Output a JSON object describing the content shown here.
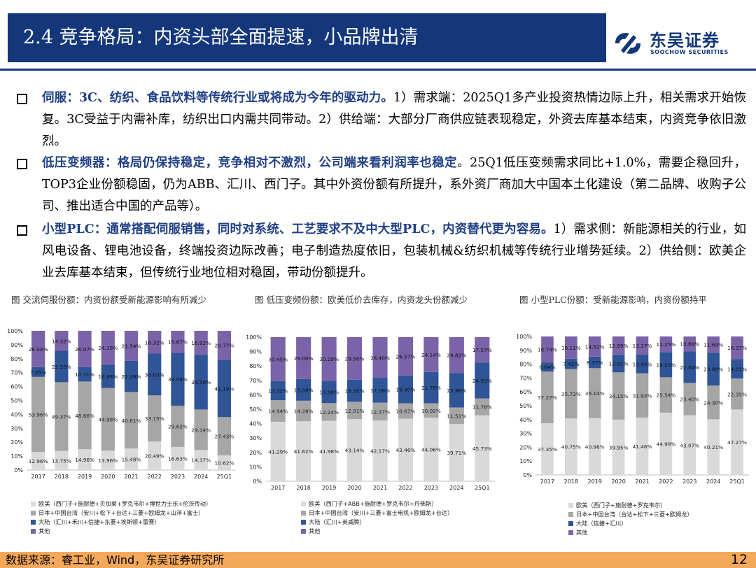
{
  "header": {
    "title": "2.4 竞争格局：内资头部全面提速，小品牌出清",
    "logo_cn": "东吴证券",
    "logo_en": "SOOCHOW SECURITIES"
  },
  "bullets": [
    {
      "lead": "伺服：3C、纺织、食品饮料等传统行业或将成为今年的驱动力。",
      "rest": "1）需求端：2025Q1多产业投资热情边际上升，相关需求开始恢复。3C受益于内需补库，纺织出口内需共同带动。2）供给端：大部分厂商供应链表现稳定，外资去库基本结束，内资竞争依旧激烈。"
    },
    {
      "lead": "低压变频器：格局仍保持稳定，竞争相对不激烈，公司端来看利润率也稳定",
      "rest": "。25Q1低压变频需求同比+1.0%，需要企稳回升，TOP3企业份额稳固，仍为ABB、汇川、西门子。其中外资份额有所提升，系外资厂商加大中国本土化建设（第二品牌、收购子公司、推出适合中国的产品等）。"
    },
    {
      "lead": "小型PLC：通常搭配伺服销售，同时对系统、工艺要求不及中大型PLC，内资替代更为容易。",
      "rest": "1）需求侧：新能源相关的行业，如风电设备、锂电池设备，终端投资边际改善；电子制造热度依旧，包装机械&纺织机械等传统行业增势延续。2）供给侧：欧美企业去库基本结束，但传统行业地位相对稳固，带动份额提升。"
    }
  ],
  "captions": [
    "图 交流伺服份额：内资份额受新能源影响有所减少",
    "图 低压变频份额：欧美低价去库存，内资龙头份额减少",
    "图 小型PLC份额：受新能源影响，内资份额持平"
  ],
  "chart_data": [
    {
      "type": "bar",
      "stacked": true,
      "categories": [
        "2017",
        "2018",
        "2019",
        "2020",
        "2021",
        "2022",
        "2023",
        "2024",
        "25Q1"
      ],
      "ylim": [
        0,
        100
      ],
      "yticks": [
        "0%",
        "10%",
        "20%",
        "30%",
        "40%",
        "50%",
        "60%",
        "70%",
        "80%",
        "90%",
        "100%"
      ],
      "series": [
        {
          "name": "欧美（西门子+施耐德+贝加莱+罗克韦尔+博世力士乐+伦茨传动）",
          "color": "#d9d9d9",
          "values": [
            12.96,
            13.75,
            14.96,
            13.96,
            15.48,
            20.49,
            16.63,
            14.37,
            10.62
          ]
        },
        {
          "name": "日本+中国台湾（安川+松下+台达+三菱+欧姆龙+山洋+富士）",
          "color": "#a6a6a6",
          "values": [
            53.96,
            49.37,
            48.66,
            44.98,
            40.61,
            33.15,
            29.62,
            29.14,
            27.43
          ]
        },
        {
          "name": "大陆（汇川+禾川+信捷+东菱+埃斯顿+雷赛）",
          "color": "#2f5597",
          "values": [
            7.05,
            22.55,
            10.31,
            16.88,
            22.36,
            30.03,
            38.08,
            39.56,
            41.19
          ]
        },
        {
          "name": "其他",
          "color": "#7a63a8",
          "values": [
            26.04,
            14.32,
            26.07,
            24.18,
            21.54,
            16.32,
            15.67,
            16.92,
            20.77
          ]
        }
      ]
    },
    {
      "type": "bar",
      "stacked": true,
      "categories": [
        "2017",
        "2018",
        "2019",
        "2020",
        "2021",
        "2022",
        "2023",
        "2024",
        "25Q1"
      ],
      "ylim": [
        0,
        100
      ],
      "yticks": [
        "0%",
        "10%",
        "20%",
        "30%",
        "40%",
        "50%",
        "60%",
        "70%",
        "80%",
        "90%",
        "100%"
      ],
      "series": [
        {
          "name": "欧美（西门子+ABB+施耐德+罗克韦尔+丹佛斯）",
          "color": "#d9d9d9",
          "values": [
            41.29,
            41.62,
            41.98,
            43.14,
            42.17,
            43.46,
            44.06,
            39.71,
            45.73
          ]
        },
        {
          "name": "日本+中国台湾（安川+三菱+富士电机+欧姆龙+台达）",
          "color": "#a6a6a6",
          "values": [
            14.94,
            14.28,
            12.24,
            12.01,
            12.37,
            10.67,
            10.02,
            11.51,
            11.78
          ]
        },
        {
          "name": "大陆（汇川+英威腾）",
          "color": "#2f5597",
          "values": [
            13.32,
            15.09,
            15.5,
            15.35,
            17.06,
            19.3,
            21.78,
            23.96,
            24.93
          ]
        },
        {
          "name": "其他",
          "color": "#7a63a8",
          "values": [
            30.45,
            29.0,
            30.29,
            29.5,
            28.4,
            26.57,
            24.14,
            24.82,
            17.57
          ]
        }
      ]
    },
    {
      "type": "bar",
      "stacked": true,
      "categories": [
        "2017",
        "2018",
        "2019",
        "2020",
        "2021",
        "2022",
        "2023",
        "2024",
        "25Q1"
      ],
      "ylim": [
        0,
        100
      ],
      "yticks": [
        "0%",
        "10%",
        "20%",
        "30%",
        "40%",
        "50%",
        "60%",
        "70%",
        "80%",
        "90%",
        "100%"
      ],
      "series": [
        {
          "name": "欧美（西门子+施耐德+罗克韦尔）",
          "color": "#d9d9d9",
          "values": [
            37.35,
            40.75,
            40.98,
            39.95,
            41.46,
            44.99,
            43.07,
            40.21,
            47.27
          ]
        },
        {
          "name": "日本+中国台湾（台达+松下+三菱+欧姆龙）",
          "color": "#a6a6a6",
          "values": [
            37.27,
            35.73,
            36.14,
            34.15,
            31.93,
            25.54,
            23.4,
            24.3,
            22.35
          ]
        },
        {
          "name": "大陆（信捷+汇川）",
          "color": "#2f5597",
          "values": [
            6.64,
            7.42,
            8.37,
            12.91,
            13.45,
            18.23,
            22.84,
            23.8,
            14.01
          ]
        },
        {
          "name": "其他",
          "color": "#7a63a8",
          "values": [
            18.74,
            16.11,
            14.52,
            12.99,
            13.17,
            11.25,
            10.69,
            11.69,
            16.37
          ]
        }
      ]
    }
  ],
  "footer": {
    "source": "数据来源：睿工业，Wind，东吴证券研究所",
    "page_number": "12"
  }
}
